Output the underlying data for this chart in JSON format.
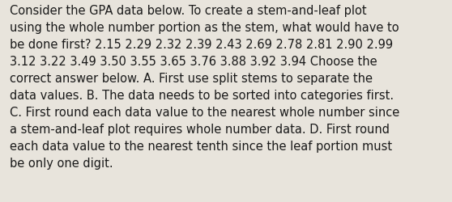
{
  "background_color": "#e8e4dc",
  "text_color": "#1a1a1a",
  "lines": [
    "Consider the GPA data below. To create a stem-and-leaf plot",
    "using the whole number portion as the stem, what would have to",
    "be done first? 2.15 2.29 2.32 2.39 2.43 2.69 2.78 2.81 2.90 2.99",
    "3.12 3.22 3.49 3.50 3.55 3.65 3.76 3.88 3.92 3.94 Choose the",
    "correct answer below. A. First use split stems to separate the",
    "data values. B. The data needs to be sorted into categories first.",
    "C. First round each data value to the nearest whole number since",
    "a stem-and-leaf plot requires whole number data. D. First round",
    "each data value to the nearest tenth since the leaf portion must",
    "be only one digit."
  ],
  "font_size": 10.5,
  "font_family": "DejaVu Sans",
  "fig_width": 5.58,
  "fig_height": 2.51,
  "dpi": 100
}
